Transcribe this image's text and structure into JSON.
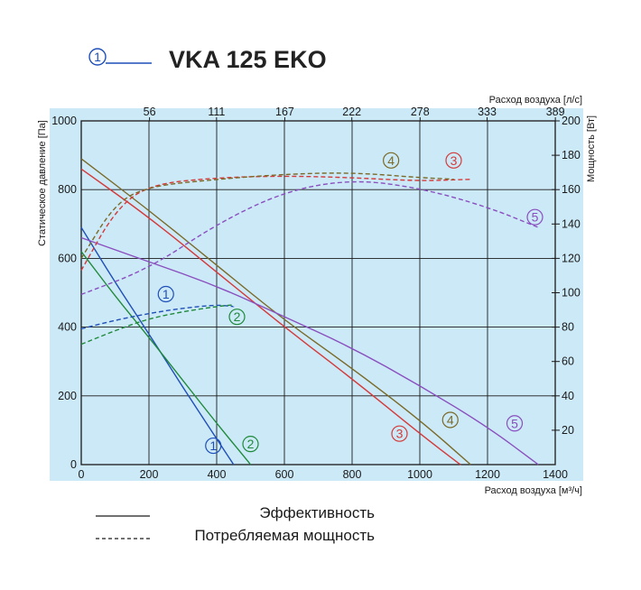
{
  "header": {
    "title": "VKA 125 EKO",
    "marker_number": "1",
    "marker_color": "#1f4fb8"
  },
  "legend": {
    "solid_label": "Эффективность",
    "dashed_label": "Потребляемая мощность"
  },
  "colors": {
    "plot_bg": "#cce9f7",
    "grid": "#1a1a1a"
  },
  "chart_data": {
    "type": "line",
    "xlabel": "Расход воздуха [м³/ч]",
    "ylabel": "Статическое давление [Па]",
    "x2label": "Расход воздуха [л/с]",
    "y2label": "Мощность [Вт]",
    "xlim": [
      0,
      1400
    ],
    "ylim": [
      0,
      1000
    ],
    "y2lim": [
      0,
      200
    ],
    "x_ticks": [
      "0",
      "200",
      "400",
      "600",
      "800",
      "1000",
      "1200",
      "1400"
    ],
    "y_ticks": [
      "0",
      "200",
      "400",
      "600",
      "800",
      "1000"
    ],
    "x2_ticks": [
      "56",
      "111",
      "167",
      "222",
      "278",
      "333",
      "389"
    ],
    "y2_ticks": [
      "20",
      "40",
      "60",
      "80",
      "100",
      "120",
      "140",
      "160",
      "180",
      "200"
    ],
    "grid": true,
    "series": [
      {
        "name": "1",
        "kind": "pressure",
        "color": "#1f4fb8",
        "x": [
          0,
          100,
          200,
          300,
          400,
          450
        ],
        "y": [
          690,
          530,
          380,
          225,
          75,
          0
        ],
        "label_at": [
          390,
          55
        ]
      },
      {
        "name": "2",
        "kind": "pressure",
        "color": "#1f8a3a",
        "x": [
          0,
          100,
          200,
          300,
          400,
          500
        ],
        "y": [
          620,
          490,
          370,
          245,
          120,
          0
        ],
        "label_at": [
          500,
          60
        ]
      },
      {
        "name": "3",
        "kind": "pressure",
        "color": "#d53a3a",
        "x": [
          0,
          200,
          400,
          600,
          800,
          1000,
          1120
        ],
        "y": [
          860,
          720,
          560,
          400,
          250,
          90,
          0
        ],
        "label_at": [
          940,
          90
        ]
      },
      {
        "name": "4",
        "kind": "pressure",
        "color": "#7a6a28",
        "x": [
          0,
          200,
          400,
          600,
          800,
          1000,
          1150
        ],
        "y": [
          890,
          740,
          580,
          420,
          280,
          130,
          0
        ],
        "label_at": [
          1090,
          130
        ]
      },
      {
        "name": "5",
        "kind": "pressure",
        "color": "#8a4fbf",
        "x": [
          0,
          200,
          400,
          600,
          800,
          1000,
          1200,
          1350
        ],
        "y": [
          660,
          590,
          520,
          430,
          340,
          230,
          110,
          0
        ],
        "label_at": [
          1280,
          120
        ]
      },
      {
        "name": "1",
        "kind": "power",
        "color": "#1f4fb8",
        "x": [
          0,
          100,
          200,
          300,
          400,
          450
        ],
        "y": [
          79,
          84,
          88,
          91,
          93,
          92
        ],
        "label_at": [
          250,
          496
        ]
      },
      {
        "name": "2",
        "kind": "power",
        "color": "#1f8a3a",
        "x": [
          0,
          100,
          200,
          300,
          400,
          450
        ],
        "y": [
          70,
          78,
          85,
          89,
          92,
          93
        ],
        "label_at": [
          460,
          430
        ]
      },
      {
        "name": "3",
        "kind": "power",
        "color": "#d53a3a",
        "x": [
          0,
          100,
          200,
          400,
          600,
          800,
          1000,
          1150
        ],
        "y": [
          113,
          148,
          163,
          167,
          168,
          167,
          165,
          166
        ],
        "label_at": [
          1100,
          885
        ]
      },
      {
        "name": "4",
        "kind": "power",
        "color": "#7a6a28",
        "x": [
          0,
          100,
          200,
          400,
          600,
          800,
          1000,
          1100
        ],
        "y": [
          120,
          152,
          162,
          166,
          169,
          170,
          167,
          166
        ],
        "label_at": [
          915,
          885
        ]
      },
      {
        "name": "5",
        "kind": "power",
        "color": "#8a4fbf",
        "x": [
          0,
          200,
          400,
          600,
          800,
          1000,
          1200,
          1350
        ],
        "y": [
          99,
          114,
          140,
          159,
          166,
          161,
          150,
          138
        ],
        "label_at": [
          1340,
          720
        ]
      }
    ]
  }
}
